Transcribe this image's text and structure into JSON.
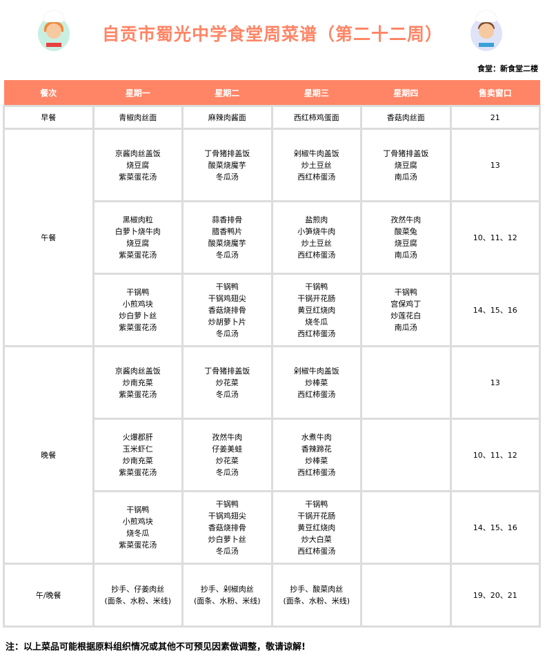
{
  "title": "自贡市蜀光中学食堂周菜谱（第二十二周）",
  "canteen": "食堂：新食堂二楼",
  "accent": "#ff8566",
  "headers": [
    "餐次",
    "星期一",
    "星期二",
    "星期三",
    "星期四",
    "售卖窗口"
  ],
  "breakfast": {
    "meal": "早餐",
    "days": [
      "青椒肉丝面",
      "麻辣肉酱面",
      "西红柿鸡蛋面",
      "香菇肉丝面"
    ],
    "window": "21"
  },
  "lunch": {
    "meal": "午餐",
    "rows": [
      {
        "days": [
          [
            "京酱肉丝盖饭",
            "烧豆腐",
            "紫菜蛋花汤"
          ],
          [
            "丁骨猪排盖饭",
            "酸菜烧魔芋",
            "冬瓜汤"
          ],
          [
            "剁椒牛肉盖饭",
            "炒土豆丝",
            "西红柿蛋汤"
          ],
          [
            "丁骨猪排盖饭",
            "烧豆腐",
            "南瓜汤"
          ]
        ],
        "window": "13"
      },
      {
        "days": [
          [
            "黑椒肉粒",
            "白萝卜烧牛肉",
            "烧豆腐",
            "紫菜蛋花汤"
          ],
          [
            "蒜香排骨",
            "腊香鸭片",
            "酸菜烧魔芋",
            "冬瓜汤"
          ],
          [
            "盐煎肉",
            "小笋烧牛肉",
            "炒土豆丝",
            "西红柿蛋汤"
          ],
          [
            "孜然牛肉",
            "酸菜兔",
            "烧豆腐",
            "南瓜汤"
          ]
        ],
        "window": "10、11、12"
      },
      {
        "days": [
          [
            "干锅鸭",
            "小煎鸡块",
            "炒白萝卜丝",
            "紫菜蛋花汤"
          ],
          [
            "干锅鸭",
            "干锅鸡翅尖",
            "香菇烧排骨",
            "炒胡萝卜片",
            "冬瓜汤"
          ],
          [
            "干锅鸭",
            "干锅开花肠",
            "黄豆红烧肉",
            "烧冬瓜",
            "西红柿蛋汤"
          ],
          [
            "干锅鸭",
            "宫保鸡丁",
            "炒莲花白",
            "南瓜汤"
          ]
        ],
        "window": "14、15、16"
      }
    ]
  },
  "dinner": {
    "meal": "晚餐",
    "rows": [
      {
        "days": [
          [
            "京酱肉丝盖饭",
            "炒南充菜",
            "紫菜蛋花汤"
          ],
          [
            "丁骨猪排盖饭",
            "炒花菜",
            "冬瓜汤"
          ],
          [
            "剁椒牛肉盖饭",
            "炒棒菜",
            "西红柿蛋汤"
          ],
          []
        ],
        "window": "13"
      },
      {
        "days": [
          [
            "火爆郡肝",
            "玉米虾仁",
            "炒南充菜",
            "紫菜蛋花汤"
          ],
          [
            "孜然牛肉",
            "仔姜美蛙",
            "炒花菜",
            "冬瓜汤"
          ],
          [
            "水煮牛肉",
            "香辣蹄花",
            "炒棒菜",
            "西红柿蛋汤"
          ],
          []
        ],
        "window": "10、11、12"
      },
      {
        "days": [
          [
            "干锅鸭",
            "小煎鸡块",
            "烧冬瓜",
            "紫菜蛋花汤"
          ],
          [
            "干锅鸭",
            "干锅鸡翅尖",
            "香菇烧排骨",
            "炒白萝卜丝",
            "冬瓜汤"
          ],
          [
            "干锅鸭",
            "干锅开花肠",
            "黄豆红烧肉",
            "炒大白菜",
            "西红柿蛋汤"
          ],
          []
        ],
        "window": "14、15、16"
      }
    ]
  },
  "noodle": {
    "meal": "午/晚餐",
    "days": [
      [
        "抄手、仔姜肉丝",
        "(面条、水粉、米线)"
      ],
      [
        "抄手、剁椒肉丝",
        "(面条、水粉、米线)"
      ],
      [
        "抄手、酸菜肉丝",
        "(面条、水粉、米线)"
      ],
      []
    ],
    "window": "19、20、21"
  },
  "note": "注：以上菜品可能根据原料组织情况或其他不可预见因素做调整，敬请谅解!"
}
